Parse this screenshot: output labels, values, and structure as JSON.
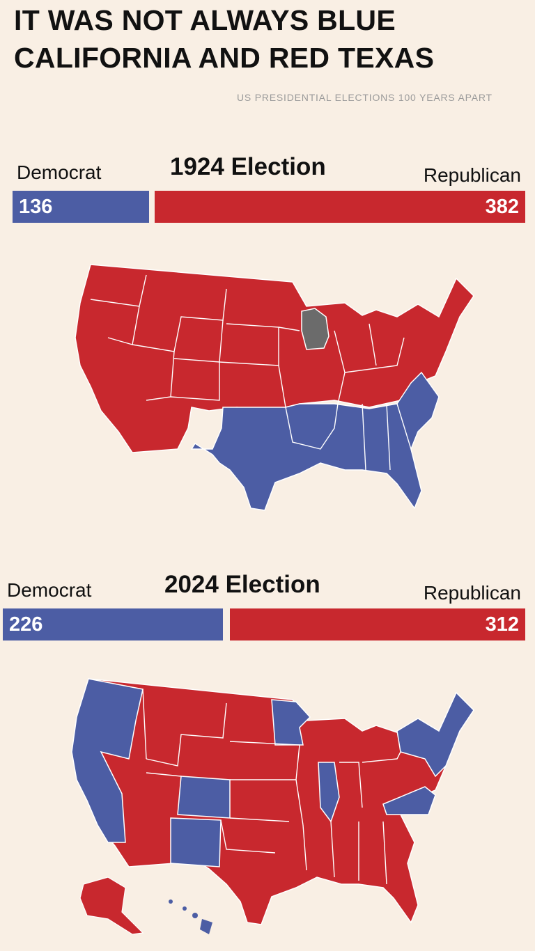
{
  "title": "IT WAS NOT ALWAYS BLUE CALIFORNIA AND RED TEXAS",
  "subtitle": "US PRESIDENTIAL ELECTIONS 100 YEARS APART",
  "colors": {
    "democrat": "#4c5da4",
    "republican": "#c8282e",
    "other": "#6b6b6b",
    "background": "#f9efe4"
  },
  "elections": [
    {
      "heading": "1924 Election",
      "dem_label": "Democrat",
      "rep_label": "Republican",
      "dem_votes": "136",
      "rep_votes": "382",
      "dem_share": 0.263,
      "rep_share": 0.737,
      "blue_region": "South",
      "gray_region": "Wisconsin"
    },
    {
      "heading": "2024 Election",
      "dem_label": "Democrat",
      "rep_label": "Republican",
      "dem_votes": "226",
      "rep_votes": "312",
      "dem_share": 0.42,
      "rep_share": 0.58,
      "blue_regions": [
        "West Coast",
        "Northeast",
        "Illinois",
        "Minnesota",
        "Colorado",
        "New Mexico",
        "Virginia"
      ]
    }
  ]
}
